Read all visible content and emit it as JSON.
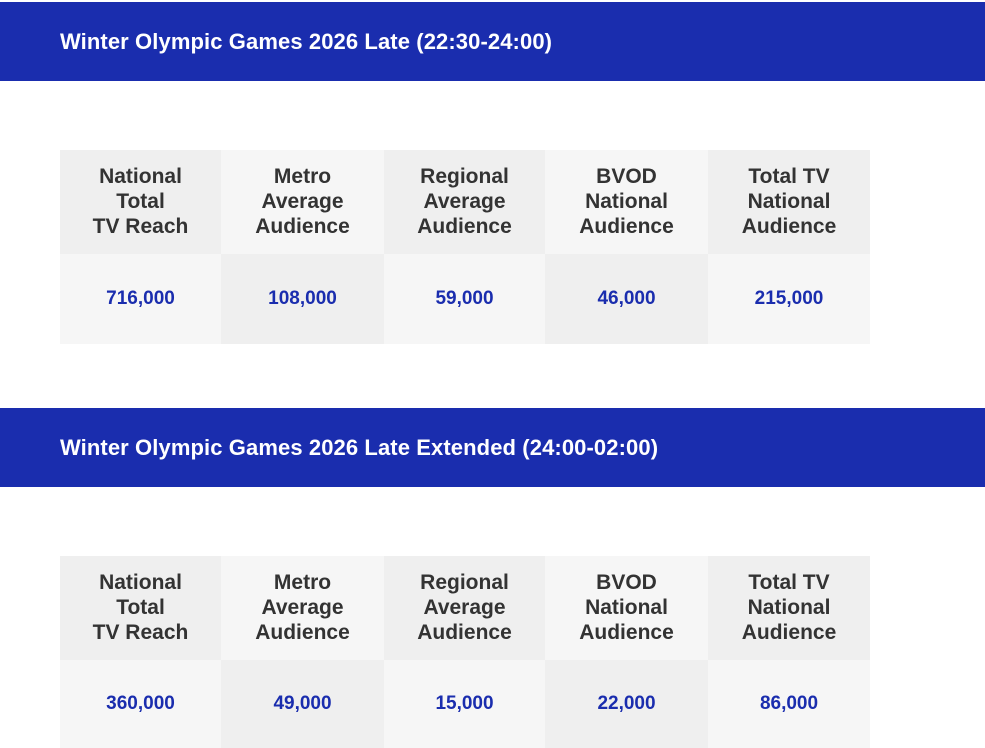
{
  "sections": [
    {
      "title": "Winter Olympic Games 2026 Late (22:30-24:00)",
      "columns": [
        {
          "header": "National\nTotal\nTV Reach",
          "value": "716,000"
        },
        {
          "header": "Metro\nAverage\nAudience",
          "value": "108,000"
        },
        {
          "header": "Regional\nAverage\nAudience",
          "value": "59,000"
        },
        {
          "header": "BVOD\nNational\nAudience",
          "value": "46,000"
        },
        {
          "header": "Total TV\nNational\nAudience",
          "value": "215,000"
        }
      ]
    },
    {
      "title": "Winter Olympic Games 2026 Late Extended (24:00-02:00)",
      "columns": [
        {
          "header": "National\nTotal\nTV Reach",
          "value": "360,000"
        },
        {
          "header": "Metro\nAverage\nAudience",
          "value": "49,000"
        },
        {
          "header": "Regional\nAverage\nAudience",
          "value": "15,000"
        },
        {
          "header": "BVOD\nNational\nAudience",
          "value": "22,000"
        },
        {
          "header": "Total TV\nNational\nAudience",
          "value": "86,000"
        }
      ]
    }
  ],
  "colors": {
    "header_band": "#1a2dae",
    "value_text": "#1a2dae",
    "header_text": "#333333",
    "cell_dark": "#efefef",
    "cell_light": "#f6f6f6"
  }
}
